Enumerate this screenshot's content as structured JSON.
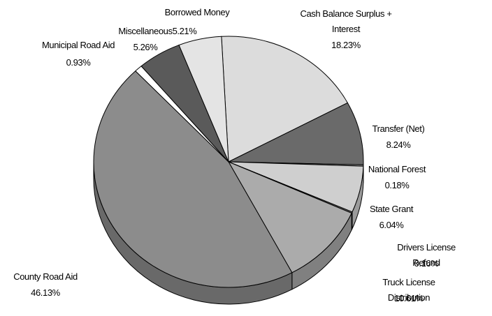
{
  "chart_data": {
    "type": "pie",
    "categories": [
      "Cash Balance Surplus +\nInterest",
      "Transfer (Net)",
      "National Forest",
      "State Grant",
      "Drivers License Refund",
      "Truck License Distribution",
      "County Road Aid",
      "Municipal Road Aid",
      "Miscellaneous",
      "Borrowed Money"
    ],
    "values": [
      18.23,
      8.24,
      0.18,
      6.04,
      0.16,
      10.61,
      46.13,
      0.93,
      5.26,
      5.21
    ],
    "value_labels": [
      "18.23%",
      "8.24%",
      "0.18%",
      "6.04%",
      "0.16%",
      "10.61%",
      "46.13%",
      "0.93%",
      "5.26%",
      "5.21%"
    ],
    "colors": [
      "#dcdcdc",
      "#6a6a6a",
      "#9a9a9a",
      "#cfcfcf",
      "#8a8a8a",
      "#ababab",
      "#8c8c8c",
      "#ffffff",
      "#5a5a5a",
      "#e4e4e4"
    ]
  }
}
